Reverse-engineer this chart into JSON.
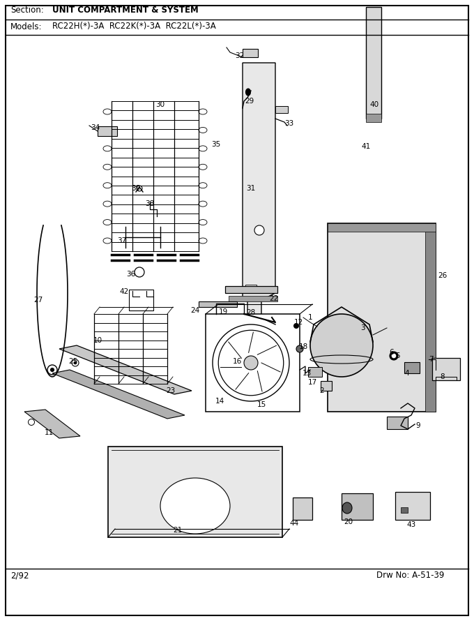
{
  "title_section": "Section:",
  "title_section_bold": "UNIT COMPARTMENT & SYSTEM",
  "title_models": "Models:",
  "title_models_text": "RC22H(*)-3A  RC22K(*)-3A  RC22L(*)-3A",
  "footer_left": "2/92",
  "footer_right": "Drw No: A-51-39",
  "bg_color": "#ffffff"
}
